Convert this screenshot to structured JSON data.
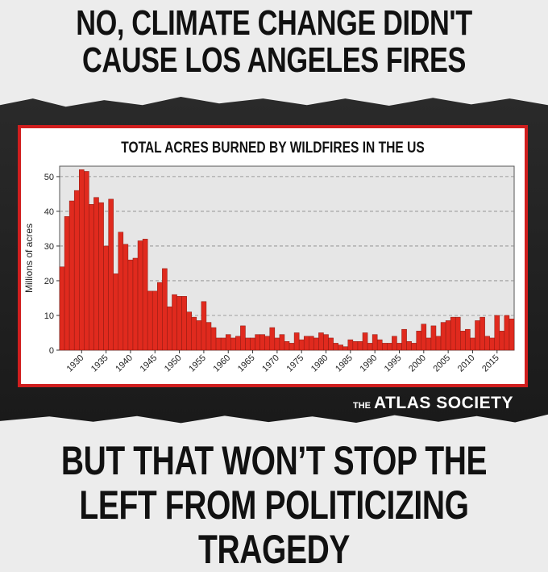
{
  "headline_top": "NO, CLIMATE CHANGE DIDN'T CAUSE LOS ANGELES FIRES",
  "headline_bottom": "BUT THAT WON’T STOP THE LEFT FROM POLITICIZING TRAGEDY",
  "logo": {
    "prefix": "THE",
    "name": "ATLAS SOCIETY"
  },
  "colors": {
    "bar": "#e02a1e",
    "frame": "#d01e1e",
    "dark_band": "#222222",
    "plot_bg": "#e6e6e6"
  },
  "chart_data": {
    "type": "bar",
    "title": "TOTAL ACRES BURNED BY WILDFIRES IN THE US",
    "xlabel": "",
    "ylabel": "Millions of acres",
    "ylim": [
      0,
      53
    ],
    "yticks": [
      0,
      10,
      20,
      30,
      40,
      50
    ],
    "xticks": [
      1930,
      1935,
      1940,
      1945,
      1950,
      1955,
      1960,
      1965,
      1970,
      1975,
      1980,
      1985,
      1990,
      1995,
      2000,
      2005,
      2010,
      2015
    ],
    "grid": "horizontal dashed",
    "x": [
      1926,
      1927,
      1928,
      1929,
      1930,
      1931,
      1932,
      1933,
      1934,
      1935,
      1936,
      1937,
      1938,
      1939,
      1940,
      1941,
      1942,
      1943,
      1944,
      1945,
      1946,
      1947,
      1948,
      1949,
      1950,
      1951,
      1952,
      1953,
      1954,
      1955,
      1956,
      1957,
      1958,
      1959,
      1960,
      1961,
      1962,
      1963,
      1964,
      1965,
      1966,
      1967,
      1968,
      1969,
      1970,
      1971,
      1972,
      1973,
      1974,
      1975,
      1976,
      1977,
      1978,
      1979,
      1980,
      1981,
      1982,
      1983,
      1984,
      1985,
      1986,
      1987,
      1988,
      1989,
      1990,
      1991,
      1992,
      1993,
      1994,
      1995,
      1996,
      1997,
      1998,
      1999,
      2000,
      2001,
      2002,
      2003,
      2004,
      2005,
      2006,
      2007,
      2008,
      2009,
      2010,
      2011,
      2012,
      2013,
      2014,
      2015,
      2016,
      2017,
      2018
    ],
    "values": [
      24,
      38.5,
      43,
      46,
      52,
      51.5,
      42,
      44,
      42.5,
      30,
      43.5,
      22,
      34,
      30.5,
      26,
      26.5,
      31.5,
      32,
      17,
      17,
      19.5,
      23.5,
      12.5,
      16,
      15.5,
      15.5,
      11,
      9.5,
      8.5,
      14,
      8,
      6.5,
      3.5,
      3.5,
      4.5,
      3.5,
      4,
      7,
      3.5,
      3.5,
      4.5,
      4.5,
      4,
      6.5,
      3.5,
      4.5,
      2.5,
      2,
      5,
      3,
      4,
      4,
      3.5,
      5,
      4.5,
      3.5,
      2,
      1.5,
      1,
      3,
      2.5,
      2.5,
      5,
      2,
      4.5,
      3,
      2,
      2,
      4,
      2,
      6,
      2.5,
      2,
      5.5,
      7.5,
      3.5,
      7,
      4,
      8,
      8.5,
      9.5,
      9.5,
      5.5,
      6,
      3.5,
      8.5,
      9.5,
      4,
      3.5,
      10,
      5.5,
      10,
      9
    ]
  }
}
